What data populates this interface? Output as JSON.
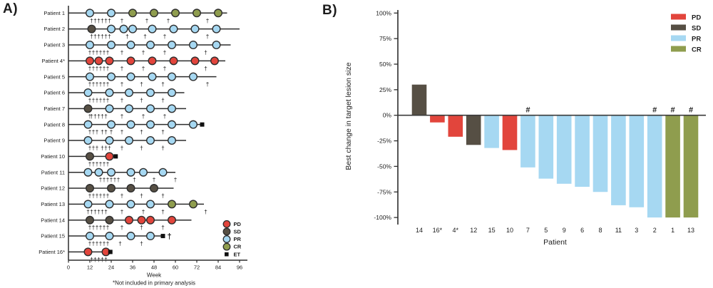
{
  "colors": {
    "PD": "#e2453c",
    "SD": "#564f44",
    "PR": "#a6d8f2",
    "CR": "#8f9d4e",
    "ET": "#101010",
    "axis": "#2d2d2d",
    "text": "#1c1c1c",
    "marker_stroke": "#2d2d2d"
  },
  "chart_data": [
    {
      "type": "swimmer",
      "panel": "A)",
      "xlabel": "Week",
      "footnote": "*Not included in primary analysis",
      "x_ticks": [
        0,
        12,
        24,
        36,
        48,
        60,
        72,
        84,
        96
      ],
      "xlim": [
        0,
        100
      ],
      "dose_symbol": "†",
      "legend": [
        {
          "label": "PD",
          "shape": "circle"
        },
        {
          "label": "SD",
          "shape": "circle"
        },
        {
          "label": "PR",
          "shape": "circle"
        },
        {
          "label": "CR",
          "shape": "circle"
        },
        {
          "label": "ET",
          "shape": "square"
        }
      ],
      "patients": [
        {
          "label": "Patient 1",
          "end": 89,
          "markers": [
            [
              12,
              "PR"
            ],
            [
              24,
              "PR"
            ],
            [
              36,
              "CR"
            ],
            [
              48,
              "CR"
            ],
            [
              60,
              "CR"
            ],
            [
              72,
              "CR"
            ],
            [
              84,
              "CR"
            ]
          ],
          "daggers": [
            13,
            15,
            17,
            19,
            21,
            23,
            30,
            44,
            56,
            78
          ],
          "et": null,
          "end_dagger": false
        },
        {
          "label": "Patient 2",
          "end": 96,
          "markers": [
            [
              13,
              "SD"
            ],
            [
              24,
              "PR"
            ],
            [
              31,
              "PR"
            ],
            [
              36,
              "PR"
            ],
            [
              47,
              "PR"
            ],
            [
              59,
              "PR"
            ],
            [
              71,
              "PR"
            ],
            [
              83,
              "PR"
            ]
          ],
          "daggers": [
            13,
            15,
            17,
            19,
            21,
            23,
            33,
            43,
            54,
            78
          ],
          "et": null,
          "end_dagger": false
        },
        {
          "label": "Patient 3",
          "end": 91,
          "markers": [
            [
              12,
              "PR"
            ],
            [
              24,
              "PR"
            ],
            [
              35,
              "PR"
            ],
            [
              46,
              "PR"
            ],
            [
              58,
              "PR"
            ],
            [
              70,
              "PR"
            ],
            [
              83,
              "PR"
            ]
          ],
          "daggers": [
            12,
            14,
            16,
            18,
            20,
            22,
            30,
            42,
            54,
            77
          ],
          "et": null,
          "end_dagger": false
        },
        {
          "label": "Patient 4*",
          "end": 88,
          "markers": [
            [
              12,
              "PD"
            ],
            [
              17,
              "PD"
            ],
            [
              23,
              "PD"
            ],
            [
              35,
              "PD"
            ],
            [
              47,
              "PD"
            ],
            [
              59,
              "PD"
            ],
            [
              71,
              "PD"
            ],
            [
              82,
              "PD"
            ]
          ],
          "daggers": [
            12,
            14,
            16,
            18,
            20,
            22,
            30,
            42,
            54,
            77
          ],
          "et": null,
          "end_dagger": false
        },
        {
          "label": "Patient 5",
          "end": 83,
          "markers": [
            [
              12,
              "PR"
            ],
            [
              24,
              "PR"
            ],
            [
              35,
              "PR"
            ],
            [
              47,
              "PR"
            ],
            [
              58,
              "PR"
            ],
            [
              70,
              "PR"
            ]
          ],
          "daggers": [
            12,
            14,
            16,
            18,
            20,
            22,
            30,
            41,
            53,
            78
          ],
          "et": null,
          "end_dagger": false
        },
        {
          "label": "Patient 6",
          "end": 65,
          "markers": [
            [
              11,
              "PR"
            ],
            [
              23,
              "PR"
            ],
            [
              34,
              "PR"
            ],
            [
              46,
              "PR"
            ],
            [
              58,
              "PR"
            ]
          ],
          "daggers": [
            12,
            14,
            16,
            18,
            20,
            22,
            30,
            41,
            53
          ],
          "et": null,
          "end_dagger": false
        },
        {
          "label": "Patient 7",
          "end": 66,
          "markers": [
            [
              11,
              "SD"
            ],
            [
              23,
              "PR"
            ],
            [
              34,
              "PR"
            ],
            [
              46,
              "PR"
            ],
            [
              58,
              "PR"
            ]
          ],
          "daggers": [
            12,
            13,
            15,
            17,
            19,
            21,
            30,
            42,
            54
          ],
          "et": null,
          "end_dagger": false
        },
        {
          "label": "Patient 8",
          "end": 75,
          "markers": [
            [
              11,
              "PR"
            ],
            [
              24,
              "PR"
            ],
            [
              35,
              "PR"
            ],
            [
              46,
              "PR"
            ],
            [
              58,
              "PR"
            ],
            [
              70,
              "PR"
            ]
          ],
          "daggers": [
            12,
            14,
            16,
            19,
            21,
            24,
            30,
            41,
            53
          ],
          "et": 75,
          "end_dagger": false
        },
        {
          "label": "Patient 9",
          "end": 66,
          "markers": [
            [
              11,
              "PR"
            ],
            [
              23,
              "PR"
            ],
            [
              34,
              "PR"
            ],
            [
              46,
              "PR"
            ],
            [
              58,
              "PR"
            ]
          ],
          "daggers": [
            12,
            14,
            16,
            19,
            21,
            23,
            30,
            41,
            53
          ],
          "et": null,
          "end_dagger": false
        },
        {
          "label": "Patient 10",
          "end": 27,
          "markers": [
            [
              12,
              "SD"
            ],
            [
              23,
              "PD"
            ]
          ],
          "daggers": [
            12,
            14,
            16,
            18,
            20,
            22
          ],
          "et": 26.5,
          "end_dagger": false
        },
        {
          "label": "Patient 11",
          "end": 60,
          "markers": [
            [
              11,
              "PR"
            ],
            [
              17,
              "PR"
            ],
            [
              24,
              "PR"
            ],
            [
              35,
              "PR"
            ],
            [
              42,
              "PR"
            ],
            [
              53,
              "PR"
            ]
          ],
          "daggers": [
            18,
            20,
            22,
            24,
            26,
            28,
            37,
            48,
            60
          ],
          "et": null,
          "end_dagger": false
        },
        {
          "label": "Patient 12",
          "end": 59,
          "markers": [
            [
              12,
              "SD"
            ],
            [
              24,
              "SD"
            ],
            [
              35,
              "SD"
            ],
            [
              48,
              "SD"
            ]
          ],
          "daggers": [
            12,
            14,
            16,
            18,
            20,
            22,
            30,
            41,
            53
          ],
          "et": null,
          "end_dagger": false
        },
        {
          "label": "Patient 13",
          "end": 76,
          "markers": [
            [
              11,
              "PR"
            ],
            [
              23,
              "PR"
            ],
            [
              35,
              "PR"
            ],
            [
              46,
              "PR"
            ],
            [
              58,
              "CR"
            ],
            [
              70,
              "CR"
            ]
          ],
          "daggers": [
            11,
            13,
            15,
            17,
            19,
            21,
            30,
            42,
            53,
            77
          ],
          "et": null,
          "end_dagger": false
        },
        {
          "label": "Patient 14",
          "end": 69,
          "markers": [
            [
              12,
              "SD"
            ],
            [
              23,
              "SD"
            ],
            [
              34,
              "PD"
            ],
            [
              41,
              "PD"
            ],
            [
              46,
              "PD"
            ],
            [
              58,
              "PD"
            ]
          ],
          "daggers": [
            12,
            14,
            16,
            18,
            20,
            22,
            30,
            41,
            53
          ],
          "et": null,
          "end_dagger": false
        },
        {
          "label": "Patient 15",
          "end": 53,
          "markers": [
            [
              12,
              "PR"
            ],
            [
              23,
              "PR"
            ],
            [
              35,
              "PR"
            ],
            [
              46,
              "PR"
            ]
          ],
          "daggers": [
            12,
            14,
            16,
            18,
            20,
            22,
            29,
            41
          ],
          "et": 53,
          "end_dagger": true
        },
        {
          "label": "Patient 16*",
          "end": 24,
          "markers": [
            [
              11,
              "PD"
            ],
            [
              21,
              "PD"
            ]
          ],
          "daggers": [
            13,
            15,
            17,
            19,
            21
          ],
          "et": 23.5,
          "end_dagger": false
        }
      ]
    },
    {
      "type": "bar",
      "panel": "B)",
      "title": "",
      "xlabel": "Patient",
      "ylabel": "Best change in target lesion size",
      "ylim": [
        -100,
        100
      ],
      "y_ticks": [
        100,
        75,
        50,
        25,
        0,
        -25,
        -50,
        -75,
        -100
      ],
      "y_tick_suffix": "%",
      "censor_symbol": "#",
      "categories": [
        "14",
        "16*",
        "4*",
        "12",
        "15",
        "10",
        "7",
        "5",
        "9",
        "6",
        "8",
        "11",
        "3",
        "2",
        "1",
        "13"
      ],
      "values": [
        30,
        -7,
        -21,
        -29,
        -32,
        -34,
        -51,
        -62,
        -67,
        -70,
        -75,
        -88,
        -90,
        -100,
        -100,
        -100
      ],
      "responses": [
        "SD",
        "PD",
        "PD",
        "SD",
        "PR",
        "PD",
        "PR",
        "PR",
        "PR",
        "PR",
        "PR",
        "PR",
        "PR",
        "PR",
        "CR",
        "CR"
      ],
      "hash_categories": [
        "7",
        "2",
        "1",
        "13"
      ],
      "legend": [
        {
          "label": "PD"
        },
        {
          "label": "SD"
        },
        {
          "label": "PR"
        },
        {
          "label": "CR"
        }
      ]
    }
  ]
}
